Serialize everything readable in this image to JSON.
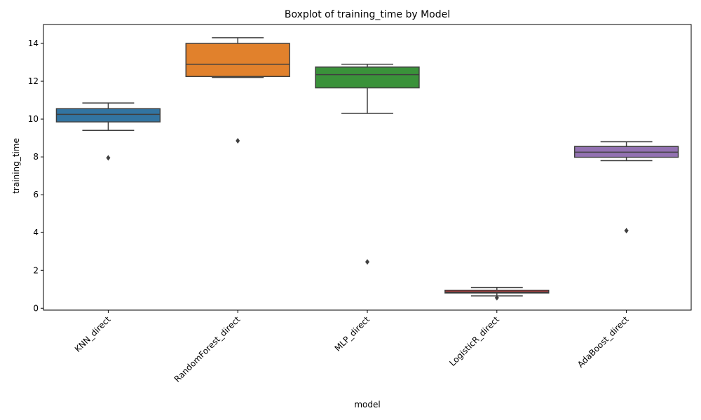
{
  "chart_data": {
    "type": "box",
    "title": "Boxplot of training_time by Model",
    "xlabel": "model",
    "ylabel": "training_time",
    "ylim": [
      -0.1,
      15.0
    ],
    "yticks": [
      0,
      2,
      4,
      6,
      8,
      10,
      12,
      14
    ],
    "grid": false,
    "categories": [
      "KNN_direct",
      "RandomForest_direct",
      "MLP_direct",
      "LogisticR_direct",
      "AdaBoost_direct"
    ],
    "boxes": [
      {
        "name": "KNN_direct",
        "whisker_low": 9.4,
        "q1": 9.85,
        "median": 10.25,
        "q3": 10.55,
        "whisker_high": 10.85,
        "outliers": [
          7.95
        ],
        "color": "#3274a1"
      },
      {
        "name": "RandomForest_direct",
        "whisker_low": 12.2,
        "q1": 12.25,
        "median": 12.9,
        "q3": 14.0,
        "whisker_high": 14.3,
        "outliers": [
          8.85
        ],
        "color": "#e1812c"
      },
      {
        "name": "MLP_direct",
        "whisker_low": 10.3,
        "q1": 11.65,
        "median": 12.35,
        "q3": 12.75,
        "whisker_high": 12.9,
        "outliers": [
          2.45
        ],
        "color": "#3a923a"
      },
      {
        "name": "LogisticR_direct",
        "whisker_low": 0.65,
        "q1": 0.8,
        "median": 0.85,
        "q3": 0.95,
        "whisker_high": 1.1,
        "outliers": [
          0.55
        ],
        "color": "#c03d3e"
      },
      {
        "name": "AdaBoost_direct",
        "whisker_low": 7.8,
        "q1": 7.98,
        "median": 8.25,
        "q3": 8.55,
        "whisker_high": 8.8,
        "outliers": [
          4.1
        ],
        "color": "#9372b2"
      }
    ]
  }
}
